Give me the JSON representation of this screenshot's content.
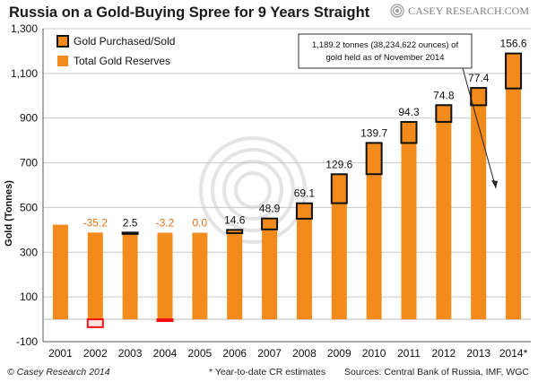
{
  "header": {
    "title": "Russia on a Gold-Buying Spree for 9 Years Straight",
    "brand": "CASEY RESEARCH.COM",
    "brand_icon": "casey-logo-icon"
  },
  "footer": {
    "copyright": "© Casey Research 2014",
    "note": "* Year-to-date CR estimates",
    "sources": "Sources: Central Bank of Russia, IMF, WGC"
  },
  "annotation": {
    "lines": [
      "1,189.2 tonnes (38,234,622 ounces) of",
      "gold held as of November 2014"
    ]
  },
  "chart_data": {
    "type": "bar",
    "title": "Russia on a Gold-Buying Spree for 9 Years Straight",
    "xlabel": "",
    "ylabel": "Gold (Tonnes)",
    "ylim": [
      -100,
      1300
    ],
    "yticks": [
      -100,
      100,
      300,
      500,
      700,
      900,
      1100,
      1300
    ],
    "ytick_labels": [
      "-100",
      "100",
      "300",
      "500",
      "700",
      "900",
      "1,100",
      "1,300"
    ],
    "grid": true,
    "legend_position": "top-left",
    "categories": [
      "2001",
      "2002",
      "2003",
      "2004",
      "2005",
      "2006",
      "2007",
      "2008",
      "2009",
      "2010",
      "2011",
      "2012",
      "2013",
      "2014*"
    ],
    "series": [
      {
        "name": "Total Gold Reserves",
        "color": "#f28a1c",
        "values": [
          423,
          388,
          388,
          387,
          387,
          400,
          451,
          519,
          649,
          789,
          883,
          958,
          1035,
          1189.2
        ]
      },
      {
        "name": "Gold Purchased/Sold",
        "color": "#f28a1c",
        "values": [
          null,
          -35.2,
          2.5,
          -3.2,
          0.0,
          14.6,
          48.9,
          69.1,
          129.6,
          139.7,
          94.3,
          74.8,
          77.4,
          156.6
        ],
        "labels": [
          "",
          "-35.2",
          "2.5",
          "-3.2",
          "0.0",
          "14.6",
          "48.9",
          "69.1",
          "129.6",
          "139.7",
          "94.3",
          "74.8",
          "77.4",
          "156.6"
        ]
      }
    ],
    "colors": {
      "bar": "#f28a1c",
      "outline": "#111111",
      "negative_outline": "#ee1111",
      "negative_label": "#e8701a",
      "positive_label": "#111111",
      "grid": "#c8c8c8",
      "watermark": "#e2e2e2"
    }
  }
}
